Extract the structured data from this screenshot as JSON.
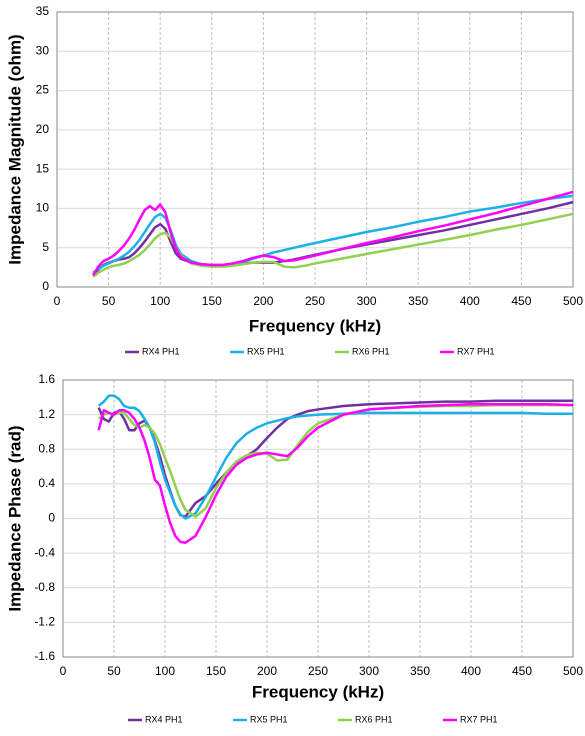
{
  "chart_data": [
    {
      "type": "line",
      "x_label": "Frequency (kHz)",
      "y_label": "Impedance Magnitude (ohm)",
      "xlim": [
        0,
        500
      ],
      "xticks": [
        0,
        50,
        100,
        150,
        200,
        250,
        300,
        350,
        400,
        450,
        500
      ],
      "ylim": [
        0,
        35
      ],
      "yticks": [
        0,
        5,
        10,
        15,
        20,
        25,
        30,
        35
      ],
      "grid": true,
      "legend": "bottom",
      "x": [
        35,
        40,
        45,
        50,
        55,
        60,
        65,
        70,
        75,
        80,
        85,
        90,
        95,
        100,
        105,
        110,
        115,
        120,
        130,
        140,
        150,
        160,
        170,
        180,
        190,
        200,
        210,
        220,
        230,
        240,
        250,
        275,
        300,
        325,
        350,
        375,
        400,
        425,
        450,
        475,
        500
      ],
      "series": [
        {
          "name": "RX4 PH1",
          "color": "#7030a0",
          "values": [
            1.5,
            2.2,
            2.8,
            3.1,
            3.3,
            3.5,
            3.6,
            3.8,
            4.3,
            5.0,
            5.8,
            6.7,
            7.6,
            8.0,
            7.4,
            5.8,
            4.3,
            3.6,
            3.1,
            2.9,
            2.8,
            2.8,
            2.9,
            3.0,
            3.1,
            3.1,
            3.1,
            3.3,
            3.5,
            3.8,
            4.1,
            4.8,
            5.4,
            6.0,
            6.6,
            7.2,
            7.9,
            8.6,
            9.3,
            10.0,
            10.8
          ]
        },
        {
          "name": "RX5 PH1",
          "color": "#1ab0e8",
          "values": [
            1.8,
            2.3,
            2.7,
            3.0,
            3.3,
            3.6,
            4.0,
            4.5,
            5.2,
            6.0,
            7.0,
            8.0,
            8.9,
            9.3,
            8.8,
            7.3,
            5.4,
            4.2,
            3.3,
            2.9,
            2.7,
            2.7,
            2.9,
            3.2,
            3.6,
            4.0,
            4.4,
            4.7,
            5.0,
            5.3,
            5.6,
            6.3,
            7.0,
            7.6,
            8.3,
            8.9,
            9.6,
            10.1,
            10.7,
            11.2,
            11.6
          ]
        },
        {
          "name": "RX6 PH1",
          "color": "#92d050",
          "values": [
            1.3,
            1.8,
            2.2,
            2.5,
            2.7,
            2.8,
            3.0,
            3.3,
            3.7,
            4.1,
            4.7,
            5.4,
            6.2,
            6.7,
            6.9,
            6.3,
            5.1,
            4.0,
            3.0,
            2.7,
            2.6,
            2.6,
            2.7,
            2.9,
            3.1,
            3.2,
            3.2,
            2.6,
            2.5,
            2.7,
            3.0,
            3.6,
            4.2,
            4.8,
            5.4,
            6.0,
            6.6,
            7.3,
            7.9,
            8.6,
            9.3
          ]
        },
        {
          "name": "RX7 PH1",
          "color": "#ff00ff",
          "values": [
            1.5,
            2.6,
            3.3,
            3.6,
            4.0,
            4.6,
            5.3,
            6.2,
            7.3,
            8.6,
            9.8,
            10.3,
            9.8,
            10.5,
            9.5,
            7.0,
            5.0,
            3.8,
            3.1,
            2.9,
            2.8,
            2.8,
            3.0,
            3.3,
            3.7,
            4.0,
            3.8,
            3.3,
            3.4,
            3.7,
            4.0,
            4.8,
            5.6,
            6.3,
            7.1,
            7.8,
            8.6,
            9.4,
            10.3,
            11.2,
            12.1
          ]
        }
      ]
    },
    {
      "type": "line",
      "x_label": "Frequency (kHz)",
      "y_label": "Impedance Phase (rad)",
      "xlim": [
        0,
        500
      ],
      "xticks": [
        0,
        50,
        100,
        150,
        200,
        250,
        300,
        350,
        400,
        450,
        500
      ],
      "ylim": [
        -1.6,
        1.6
      ],
      "yticks": [
        -1.6,
        -1.2,
        -0.8,
        -0.4,
        0,
        0.4,
        0.8,
        1.2,
        1.6
      ],
      "grid": true,
      "legend": "bottom",
      "x": [
        35,
        40,
        45,
        50,
        55,
        60,
        65,
        70,
        75,
        80,
        85,
        90,
        95,
        100,
        105,
        110,
        115,
        120,
        130,
        140,
        150,
        160,
        170,
        180,
        190,
        200,
        210,
        220,
        230,
        240,
        250,
        275,
        300,
        325,
        350,
        375,
        400,
        425,
        450,
        475,
        500
      ],
      "series": [
        {
          "name": "RX4 PH1",
          "color": "#7030a0",
          "values": [
            1.28,
            1.15,
            1.12,
            1.22,
            1.24,
            1.15,
            1.02,
            1.02,
            1.1,
            1.13,
            1.05,
            0.9,
            0.72,
            0.5,
            0.32,
            0.15,
            0.04,
            0.02,
            0.18,
            0.26,
            0.4,
            0.53,
            0.65,
            0.72,
            0.8,
            0.93,
            1.05,
            1.15,
            1.2,
            1.24,
            1.26,
            1.3,
            1.32,
            1.33,
            1.34,
            1.35,
            1.35,
            1.36,
            1.36,
            1.36,
            1.36
          ]
        },
        {
          "name": "RX5 PH1",
          "color": "#1ab0e8",
          "values": [
            1.3,
            1.35,
            1.42,
            1.42,
            1.38,
            1.3,
            1.28,
            1.28,
            1.24,
            1.15,
            1.05,
            0.88,
            0.65,
            0.45,
            0.3,
            0.15,
            0.05,
            0.0,
            0.06,
            0.25,
            0.48,
            0.7,
            0.87,
            0.98,
            1.05,
            1.1,
            1.13,
            1.16,
            1.18,
            1.19,
            1.2,
            1.21,
            1.22,
            1.22,
            1.22,
            1.22,
            1.22,
            1.22,
            1.22,
            1.21,
            1.21
          ]
        },
        {
          "name": "RX6 PH1",
          "color": "#92d050",
          "values": [
            1.15,
            1.2,
            1.22,
            1.2,
            1.22,
            1.22,
            1.15,
            1.08,
            1.05,
            1.08,
            1.05,
            0.98,
            0.86,
            0.7,
            0.55,
            0.38,
            0.22,
            0.1,
            0.02,
            0.12,
            0.35,
            0.53,
            0.66,
            0.73,
            0.76,
            0.75,
            0.67,
            0.68,
            0.85,
            1.0,
            1.1,
            1.2,
            1.26,
            1.28,
            1.29,
            1.3,
            1.3,
            1.31,
            1.31,
            1.31,
            1.31
          ]
        },
        {
          "name": "RX7 PH1",
          "color": "#ff00ff",
          "values": [
            1.02,
            1.25,
            1.22,
            1.2,
            1.25,
            1.25,
            1.22,
            1.15,
            1.05,
            0.9,
            0.7,
            0.45,
            0.38,
            0.15,
            -0.05,
            -0.2,
            -0.27,
            -0.28,
            -0.2,
            0.02,
            0.27,
            0.48,
            0.62,
            0.7,
            0.74,
            0.76,
            0.74,
            0.72,
            0.82,
            0.95,
            1.05,
            1.2,
            1.26,
            1.28,
            1.3,
            1.31,
            1.32,
            1.32,
            1.32,
            1.32,
            1.31
          ]
        }
      ]
    }
  ]
}
